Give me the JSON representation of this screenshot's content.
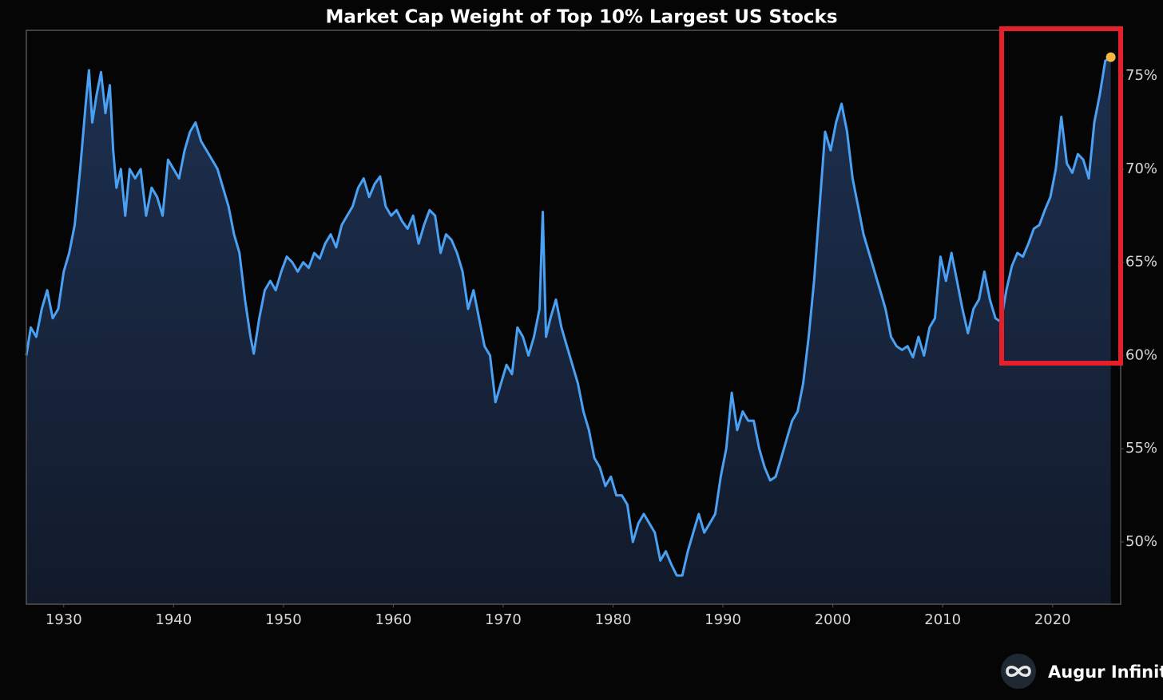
{
  "chart_data": {
    "type": "area",
    "title": "Market Cap Weight of Top 10% Largest US Stocks",
    "x": [
      1926.6,
      1927,
      1927.5,
      1928,
      1928.5,
      1929,
      1929.5,
      1930,
      1930.5,
      1931,
      1931.5,
      1932,
      1932.3,
      1932.6,
      1933,
      1933.4,
      1933.8,
      1934.2,
      1934.5,
      1934.8,
      1935.2,
      1935.6,
      1936,
      1936.5,
      1937,
      1937.5,
      1938,
      1938.5,
      1939,
      1939.5,
      1940,
      1940.5,
      1941,
      1941.5,
      1942,
      1942.5,
      1943,
      1943.5,
      1944,
      1944.5,
      1945,
      1945.5,
      1946,
      1946.5,
      1947,
      1947.3,
      1947.8,
      1948.3,
      1948.8,
      1949.3,
      1949.8,
      1950.3,
      1950.8,
      1951.3,
      1951.8,
      1952.3,
      1952.8,
      1953.3,
      1953.8,
      1954.3,
      1954.8,
      1955.3,
      1955.8,
      1956.3,
      1956.8,
      1957.3,
      1957.8,
      1958.3,
      1958.8,
      1959.3,
      1959.8,
      1960.3,
      1960.8,
      1961.3,
      1961.8,
      1962.3,
      1962.8,
      1963.3,
      1963.8,
      1964.3,
      1964.8,
      1965.3,
      1965.8,
      1966.3,
      1966.8,
      1967.3,
      1967.8,
      1968.3,
      1968.8,
      1969.3,
      1969.8,
      1970.3,
      1970.8,
      1971.3,
      1971.8,
      1972.3,
      1972.8,
      1973.3,
      1973.6,
      1973.9,
      1974.3,
      1974.8,
      1975.3,
      1975.8,
      1976.3,
      1976.8,
      1977.3,
      1977.8,
      1978.3,
      1978.8,
      1979.3,
      1979.8,
      1980.3,
      1980.8,
      1981.3,
      1981.8,
      1982.3,
      1982.8,
      1983.3,
      1983.8,
      1984.3,
      1984.8,
      1985.3,
      1985.8,
      1986.3,
      1986.8,
      1987.3,
      1987.8,
      1988.3,
      1988.8,
      1989.3,
      1989.8,
      1990.3,
      1990.8,
      1991.3,
      1991.8,
      1992.3,
      1992.8,
      1993.3,
      1993.8,
      1994.3,
      1994.8,
      1995.3,
      1995.8,
      1996.3,
      1996.8,
      1997.3,
      1997.8,
      1998.3,
      1998.8,
      1999.3,
      1999.8,
      2000.3,
      2000.8,
      2001.3,
      2001.8,
      2002.3,
      2002.8,
      2003.3,
      2003.8,
      2004.3,
      2004.8,
      2005.3,
      2005.8,
      2006.3,
      2006.8,
      2007.3,
      2007.8,
      2008.3,
      2008.8,
      2009.3,
      2009.8,
      2010.3,
      2010.8,
      2011.3,
      2011.8,
      2012.3,
      2012.8,
      2013.3,
      2013.8,
      2014.3,
      2014.8,
      2015.3,
      2015.8,
      2016.3,
      2016.8,
      2017.3,
      2017.8,
      2018.3,
      2018.8,
      2019.3,
      2019.8,
      2020.3,
      2020.8,
      2021.3,
      2021.8,
      2022.3,
      2022.8,
      2023.3,
      2023.8,
      2024.3,
      2024.8,
      2025.3
    ],
    "values": [
      60,
      61.5,
      61,
      62.5,
      63.5,
      62,
      62.5,
      64.5,
      65.5,
      67,
      70,
      73.5,
      75.3,
      72.5,
      74,
      75.2,
      73,
      74.5,
      71,
      69,
      70,
      67.5,
      70,
      69.5,
      70,
      67.5,
      69,
      68.5,
      67.5,
      70.5,
      70,
      69.5,
      71,
      72,
      72.5,
      71.5,
      71,
      70.5,
      70,
      69,
      68,
      66.5,
      65.5,
      63,
      61,
      60.1,
      62,
      63.5,
      64,
      63.5,
      64.5,
      65.3,
      65,
      64.5,
      65,
      64.7,
      65.5,
      65.2,
      66,
      66.5,
      65.8,
      67,
      67.5,
      68,
      69,
      69.5,
      68.5,
      69.2,
      69.6,
      68,
      67.5,
      67.8,
      67.2,
      66.8,
      67.5,
      66,
      67,
      67.8,
      67.5,
      65.5,
      66.5,
      66.2,
      65.5,
      64.5,
      62.5,
      63.5,
      62,
      60.5,
      60,
      57.5,
      58.5,
      59.5,
      59,
      61.5,
      61,
      60,
      61,
      62.5,
      67.7,
      61,
      62,
      63,
      61.5,
      60.5,
      59.5,
      58.5,
      57,
      56,
      54.5,
      54,
      53,
      53.5,
      52.5,
      52.5,
      52,
      50,
      51,
      51.5,
      51,
      50.5,
      49,
      49.5,
      48.8,
      48.2,
      48.2,
      49.5,
      50.5,
      51.5,
      50.5,
      51,
      51.5,
      53.5,
      55,
      58,
      56,
      57,
      56.5,
      56.5,
      55,
      54,
      53.3,
      53.5,
      54.5,
      55.5,
      56.5,
      57,
      58.5,
      61,
      64,
      68,
      72,
      71,
      72.5,
      73.5,
      72,
      69.5,
      68,
      66.5,
      65.5,
      64.5,
      63.5,
      62.5,
      61,
      60.5,
      60.3,
      60.5,
      59.9,
      61,
      60,
      61.5,
      62,
      65.3,
      64,
      65.5,
      64,
      62.5,
      61.2,
      62.5,
      63,
      64.5,
      63,
      62,
      61.8,
      63.5,
      64.8,
      65.5,
      65.3,
      66,
      66.8,
      67,
      67.8,
      68.5,
      70,
      72.8,
      70.3,
      69.8,
      70.8,
      70.5,
      69.5,
      72.5,
      74,
      75.8,
      76
    ],
    "color": "#4aa0f2",
    "highlight_color": "#f5b942",
    "xlim": [
      1926.6,
      2026.2
    ],
    "xticks": [
      1930,
      1940,
      1950,
      1960,
      1970,
      1980,
      1990,
      2000,
      2010,
      2020
    ],
    "ylim": [
      46.66,
      77.44
    ],
    "yticks": [
      {
        "value": 50,
        "label": "50%"
      },
      {
        "value": 55,
        "label": "55%"
      },
      {
        "value": 60,
        "label": "60%"
      },
      {
        "value": 65,
        "label": "65%"
      },
      {
        "value": 70,
        "label": "70%"
      },
      {
        "value": 75,
        "label": "75%"
      }
    ],
    "grid": false
  },
  "brand": "Augur Infinity"
}
